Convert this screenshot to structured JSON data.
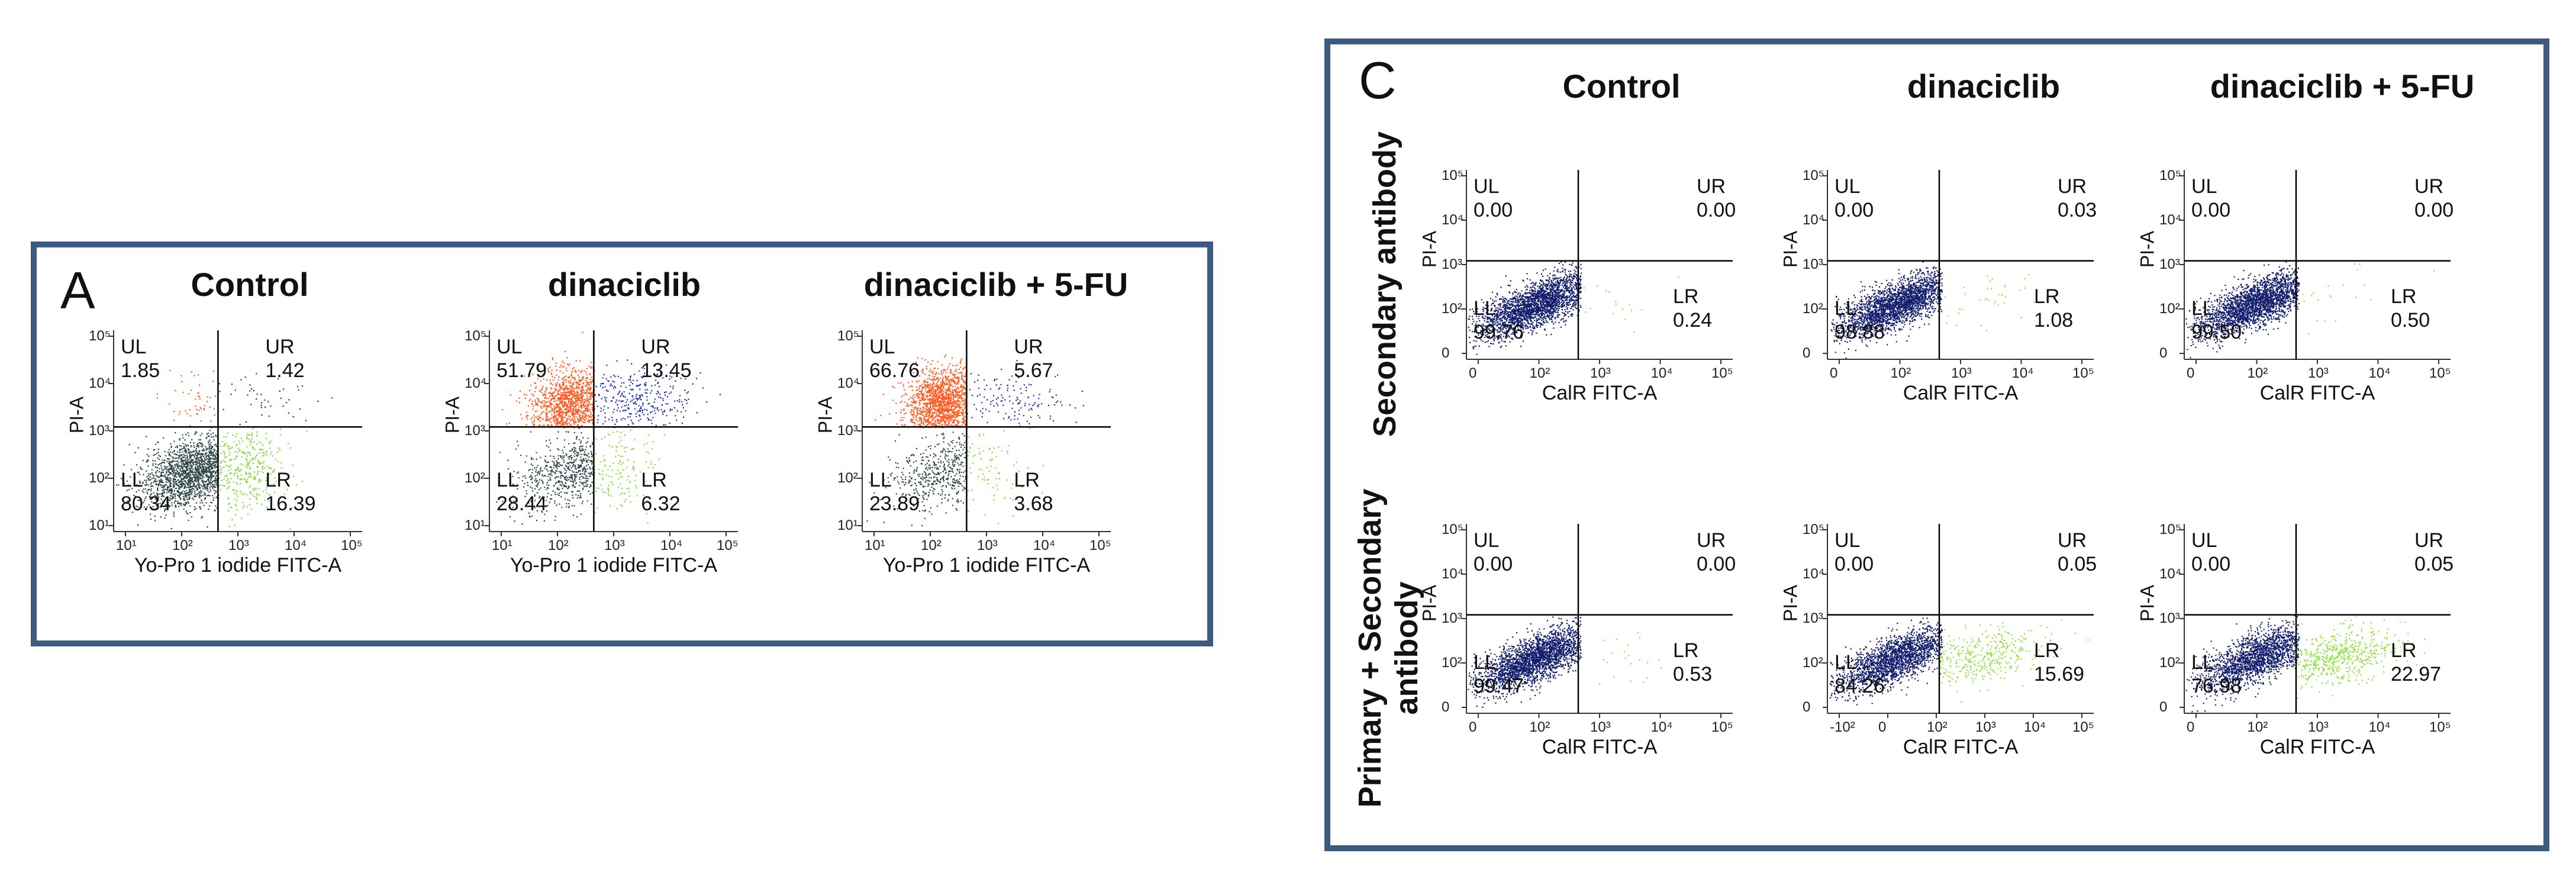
{
  "panel_a": {
    "letter": "A",
    "columns": [
      "Control",
      "dinaciclib",
      "dinaciclib + 5-FU"
    ],
    "x_axis_label": "Yo-Pro 1 iodide FITC-A",
    "y_axis_label": "PI-A",
    "x_ticks": [
      "10¹",
      "10²",
      "10³",
      "10⁴",
      "10⁵"
    ],
    "y_ticks": [
      "10⁵",
      "10⁴",
      "10³",
      "10²",
      "10¹"
    ],
    "plots": [
      {
        "UL": "1.85",
        "UR": "1.42",
        "LL": "80.34",
        "LR": "16.39"
      },
      {
        "UL": "51.79",
        "UR": "13.45",
        "LL": "28.44",
        "LR": "6.32"
      },
      {
        "UL": "66.76",
        "UR": "5.67",
        "LL": "23.89",
        "LR": "3.68"
      }
    ]
  },
  "panel_c": {
    "letter": "C",
    "columns": [
      "Control",
      "dinaciclib",
      "dinaciclib + 5-FU"
    ],
    "rows": [
      "Secondary antibody",
      "Primary + Secondary antibody"
    ],
    "row_lines": [
      [
        "Secondary antibody"
      ],
      [
        "Primary + Secondary",
        "antibody"
      ]
    ],
    "x_axis_label": "CalR FITC-A",
    "y_axis_label": "PI-A",
    "x_ticks_a": [
      "0",
      "10²",
      "10³",
      "10⁴",
      "10⁵"
    ],
    "x_ticks_b": [
      "-10²",
      "0",
      "10²",
      "10³",
      "10⁴",
      "10⁵"
    ],
    "y_ticks": [
      "10⁵",
      "10⁴",
      "10³",
      "10²",
      "0"
    ],
    "plots": [
      {
        "UL": "0.00",
        "UR": "0.00",
        "LL": "99.76",
        "LR": "0.24"
      },
      {
        "UL": "0.00",
        "UR": "0.03",
        "LL": "98.88",
        "LR": "1.08"
      },
      {
        "UL": "0.00",
        "UR": "0.00",
        "LL": "99.50",
        "LR": "0.50"
      },
      {
        "UL": "0.00",
        "UR": "0.00",
        "LL": "99.47",
        "LR": "0.53"
      },
      {
        "UL": "0.00",
        "UR": "0.05",
        "LL": "84.26",
        "LR": "15.69"
      },
      {
        "UL": "0.00",
        "UR": "0.05",
        "LL": "76.98",
        "LR": "22.97"
      }
    ]
  },
  "quadrant_names": {
    "UL": "UL",
    "UR": "UR",
    "LL": "LL",
    "LR": "LR"
  },
  "colors": {
    "frame": "#3d5a80",
    "ll_gray": "#2f4646",
    "ul_orange": "#ff5a1f",
    "ur_blue": "#1f2fb0",
    "lr_green": "#7fd93a",
    "c_navy": "#141e6e",
    "c_green": "#8ee03a"
  }
}
